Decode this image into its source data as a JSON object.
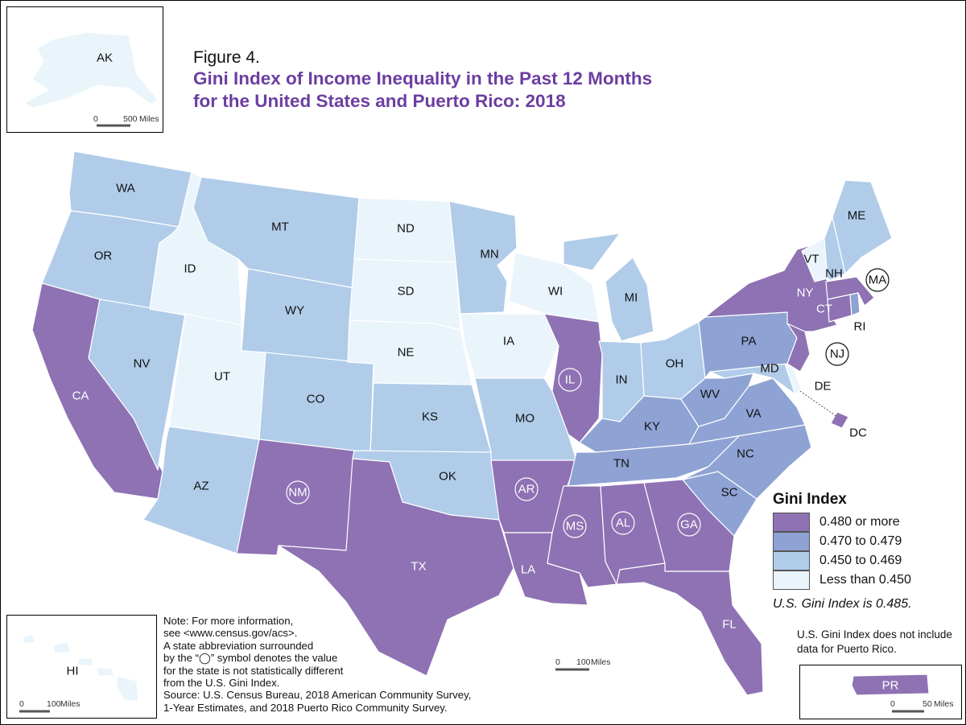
{
  "figure": {
    "label": "Figure 4.",
    "title_line1": "Gini Index of Income Inequality in the Past 12 Months",
    "title_line2": "for the United States and Puerto Rico: 2018"
  },
  "colors": {
    "cat_high": "#8e72b3",
    "cat_mid": "#8ea2d3",
    "cat_low": "#b0cce9",
    "cat_lowest": "#eaf4fb",
    "title": "#6b3ea0"
  },
  "legend": {
    "title": "Gini Index",
    "items": [
      {
        "label": "0.480 or more",
        "color": "#8e72b3"
      },
      {
        "label": "0.470 to 0.479",
        "color": "#8ea2d3"
      },
      {
        "label": "0.450 to 0.469",
        "color": "#b0cce9"
      },
      {
        "label": "Less than 0.450",
        "color": "#eaf4fb"
      }
    ],
    "us_gini": "U.S. Gini Index is 0.485.",
    "pr_note": "U.S. Gini Index does not include data for Puerto Rico."
  },
  "note": {
    "line1": "Note: For more information,",
    "line2": "see <www.census.gov/acs>.",
    "line3": "A state abbreviation surrounded",
    "line4": "by the “◯” symbol denotes the value",
    "line5": "for the state is not statistically different",
    "line6": "from the U.S. Gini Index.",
    "line7": "Source: U.S. Census Bureau, 2018 American Community Survey,",
    "line8": "1-Year Estimates, and 2018 Puerto Rico Community Survey."
  },
  "scales": {
    "ak": "500",
    "ak_units": "Miles",
    "main": "100",
    "main_units": "Miles",
    "hi": "100",
    "hi_units": "Miles",
    "pr": "50",
    "pr_units": "Miles",
    "zero": "0"
  },
  "states": {
    "WA": {
      "label": "WA",
      "category": "0.450 to 0.469"
    },
    "OR": {
      "label": "OR",
      "category": "0.450 to 0.469"
    },
    "CA": {
      "label": "CA",
      "category": "0.480 or more"
    },
    "NV": {
      "label": "NV",
      "category": "0.450 to 0.469"
    },
    "ID": {
      "label": "ID",
      "category": "Less than 0.450"
    },
    "MT": {
      "label": "MT",
      "category": "0.450 to 0.469"
    },
    "WY": {
      "label": "WY",
      "category": "0.450 to 0.469"
    },
    "UT": {
      "label": "UT",
      "category": "Less than 0.450"
    },
    "AZ": {
      "label": "AZ",
      "category": "0.450 to 0.469"
    },
    "CO": {
      "label": "CO",
      "category": "0.450 to 0.469"
    },
    "NM": {
      "label": "NM",
      "category": "0.480 or more",
      "circled": true
    },
    "ND": {
      "label": "ND",
      "category": "Less than 0.450"
    },
    "SD": {
      "label": "SD",
      "category": "Less than 0.450"
    },
    "NE": {
      "label": "NE",
      "category": "Less than 0.450"
    },
    "KS": {
      "label": "KS",
      "category": "0.450 to 0.469"
    },
    "OK": {
      "label": "OK",
      "category": "0.450 to 0.469"
    },
    "TX": {
      "label": "TX",
      "category": "0.480 or more"
    },
    "MN": {
      "label": "MN",
      "category": "0.450 to 0.469"
    },
    "IA": {
      "label": "IA",
      "category": "Less than 0.450"
    },
    "MO": {
      "label": "MO",
      "category": "0.450 to 0.469"
    },
    "AR": {
      "label": "AR",
      "category": "0.480 or more",
      "circled": true
    },
    "LA": {
      "label": "LA",
      "category": "0.480 or more"
    },
    "WI": {
      "label": "WI",
      "category": "Less than 0.450"
    },
    "IL": {
      "label": "IL",
      "category": "0.480 or more",
      "circled": true
    },
    "MI": {
      "label": "MI",
      "category": "0.450 to 0.469"
    },
    "IN": {
      "label": "IN",
      "category": "0.450 to 0.469"
    },
    "OH": {
      "label": "OH",
      "category": "0.450 to 0.469"
    },
    "KY": {
      "label": "KY",
      "category": "0.470 to 0.479"
    },
    "TN": {
      "label": "TN",
      "category": "0.470 to 0.479"
    },
    "MS": {
      "label": "MS",
      "category": "0.480 or more",
      "circled": true
    },
    "AL": {
      "label": "AL",
      "category": "0.480 or more",
      "circled": true
    },
    "GA": {
      "label": "GA",
      "category": "0.480 or more",
      "circled": true
    },
    "FL": {
      "label": "FL",
      "category": "0.480 or more"
    },
    "SC": {
      "label": "SC",
      "category": "0.470 to 0.479"
    },
    "NC": {
      "label": "NC",
      "category": "0.470 to 0.479"
    },
    "VA": {
      "label": "VA",
      "category": "0.470 to 0.479"
    },
    "WV": {
      "label": "WV",
      "category": "0.470 to 0.479"
    },
    "PA": {
      "label": "PA",
      "category": "0.470 to 0.479"
    },
    "NY": {
      "label": "NY",
      "category": "0.480 or more"
    },
    "NJ": {
      "label": "NJ",
      "category": "0.480 or more",
      "circled": true
    },
    "DE": {
      "label": "DE",
      "category": "Less than 0.450"
    },
    "MD": {
      "label": "MD",
      "category": "0.450 to 0.469"
    },
    "DC": {
      "label": "DC",
      "category": "0.480 or more"
    },
    "CT": {
      "label": "CT",
      "category": "0.480 or more"
    },
    "RI": {
      "label": "RI",
      "category": "0.470 to 0.479"
    },
    "MA": {
      "label": "MA",
      "category": "0.480 or more",
      "circled": true
    },
    "VT": {
      "label": "VT",
      "category": "Less than 0.450"
    },
    "NH": {
      "label": "NH",
      "category": "0.450 to 0.469"
    },
    "ME": {
      "label": "ME",
      "category": "0.450 to 0.469"
    },
    "AK": {
      "label": "AK",
      "category": "Less than 0.450"
    },
    "HI": {
      "label": "HI",
      "category": "Less than 0.450"
    },
    "PR": {
      "label": "PR",
      "category": "0.480 or more"
    }
  }
}
